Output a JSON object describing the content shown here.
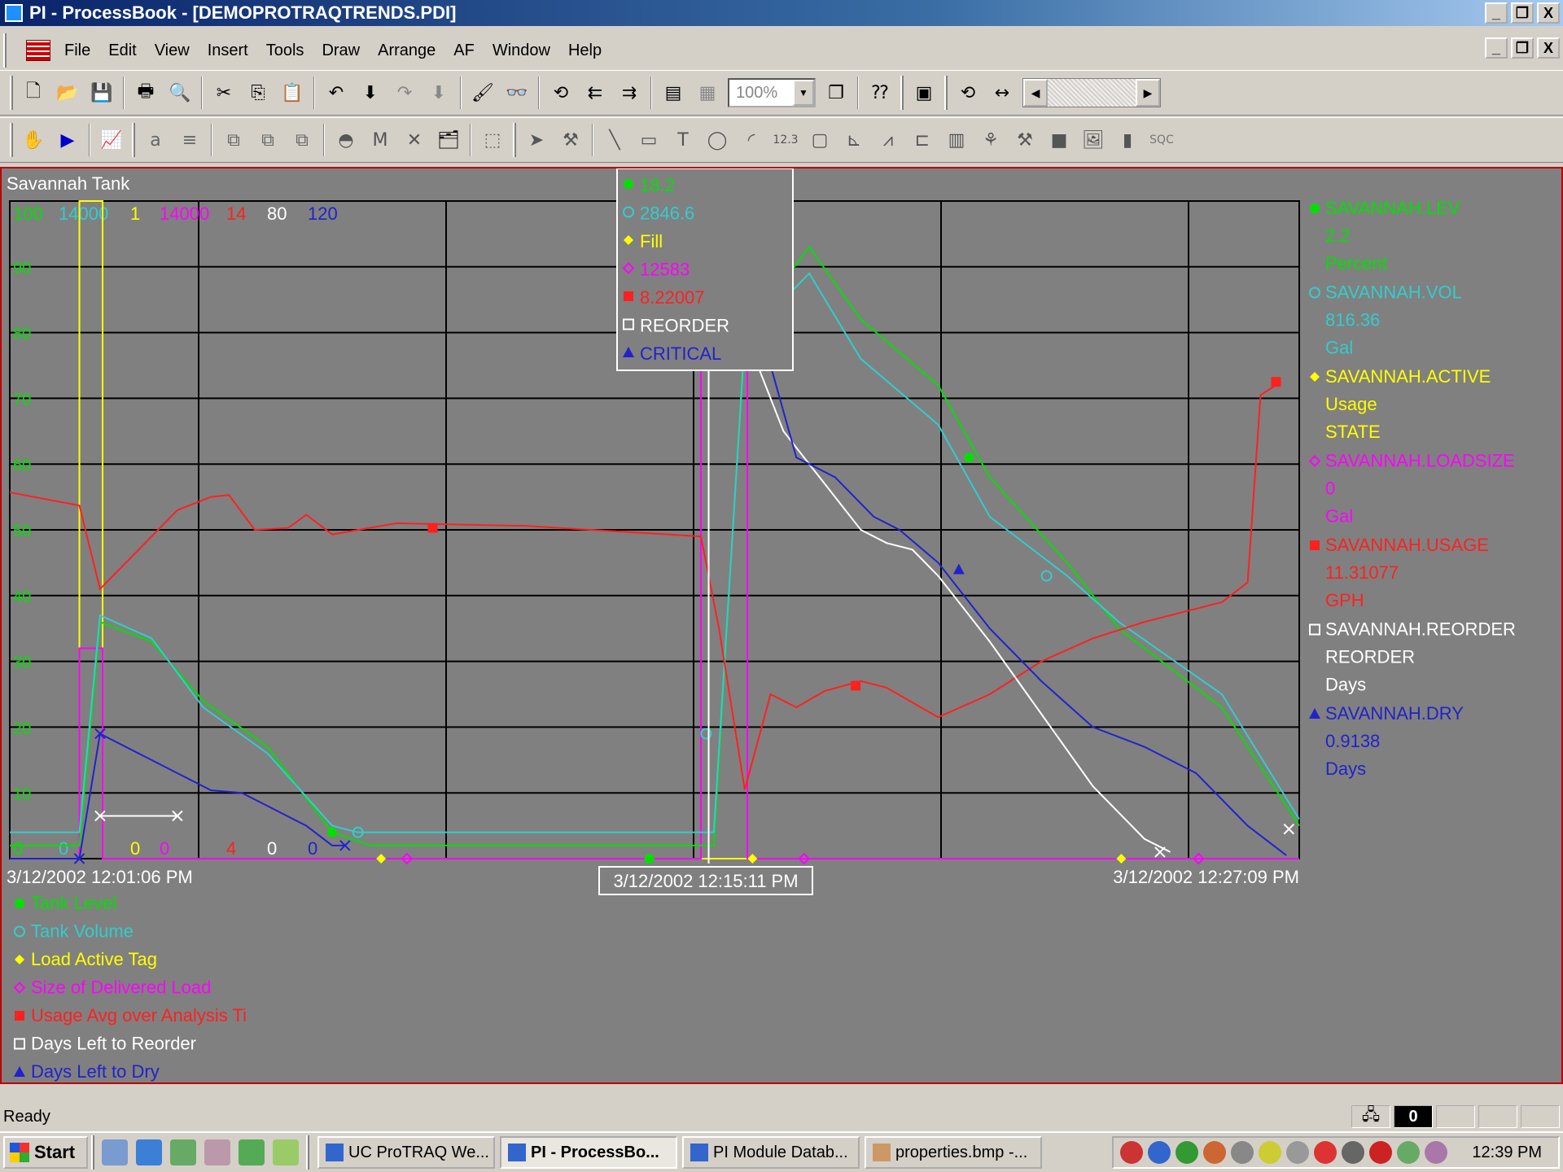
{
  "window": {
    "title": "PI - ProcessBook - [DEMOPROTRAQTRENDS.PDI]",
    "min": "_",
    "restore": "❐",
    "close": "X"
  },
  "menu": [
    "File",
    "Edit",
    "View",
    "Insert",
    "Tools",
    "Draw",
    "Arrange",
    "AF",
    "Window",
    "Help"
  ],
  "toolbar": {
    "zoom": "100%"
  },
  "trend": {
    "title": "Savannah Tank",
    "scale_tops": [
      {
        "t": "100",
        "c": "#00e000"
      },
      {
        "t": "14000",
        "c": "#33cccc"
      },
      {
        "t": "1",
        "c": "#ffff00"
      },
      {
        "t": "14000",
        "c": "#ff00ff"
      },
      {
        "t": "14",
        "c": "#ff2020"
      },
      {
        "t": "80",
        "c": "#ffffff"
      },
      {
        "t": "120",
        "c": "#2222cc"
      }
    ],
    "scale_bottoms": [
      {
        "t": "0",
        "c": "#00e000"
      },
      {
        "t": "0",
        "c": "#33cccc"
      },
      {
        "t": "0",
        "c": "#ffff00"
      },
      {
        "t": "0",
        "c": "#ff00ff"
      },
      {
        "t": "4",
        "c": "#ff2020"
      },
      {
        "t": "0",
        "c": "#ffffff"
      },
      {
        "t": "0",
        "c": "#2222cc"
      }
    ],
    "y_ticks": [
      "90",
      "80",
      "70",
      "60",
      "50",
      "40",
      "30",
      "20",
      "10"
    ],
    "time_start": "3/12/2002 12:01:06 PM",
    "time_cursor": "3/12/2002 12:15:11 PM",
    "time_end": "3/12/2002 12:27:09 PM",
    "cursor_values": [
      {
        "v": "18.2",
        "c": "#00e000",
        "sym": "dot"
      },
      {
        "v": "2846.6",
        "c": "#33cccc",
        "sym": "ring"
      },
      {
        "v": "Fill",
        "c": "#ffff00",
        "sym": "diamond"
      },
      {
        "v": "12583",
        "c": "#ff00ff",
        "sym": "odiamond"
      },
      {
        "v": "8.22007",
        "c": "#ff2020",
        "sym": "square"
      },
      {
        "v": "REORDER",
        "c": "#ffffff",
        "sym": "osquare"
      },
      {
        "v": "CRITICAL",
        "c": "#2222cc",
        "sym": "triangle"
      }
    ],
    "right_legend": [
      {
        "tag": "SAVANNAH.LEV",
        "v": "2.2",
        "u": "Percent",
        "c": "#00e000",
        "sym": "dot"
      },
      {
        "tag": "SAVANNAH.VOL",
        "v": "816.36",
        "u": "Gal",
        "c": "#33cccc",
        "sym": "ring"
      },
      {
        "tag": "SAVANNAH.ACTIVE",
        "v": "Usage",
        "u": "STATE",
        "c": "#ffff00",
        "sym": "diamond"
      },
      {
        "tag": "SAVANNAH.LOADSIZE",
        "v": "0",
        "u": "Gal",
        "c": "#ff00ff",
        "sym": "odiamond"
      },
      {
        "tag": "SAVANNAH.USAGE",
        "v": "11.31077",
        "u": "GPH",
        "c": "#ff2020",
        "sym": "square"
      },
      {
        "tag": "SAVANNAH.REORDER",
        "v": "REORDER",
        "u": "Days",
        "c": "#ffffff",
        "sym": "osquare"
      },
      {
        "tag": "SAVANNAH.DRY",
        "v": "0.9138",
        "u": "Days",
        "c": "#2222cc",
        "sym": "triangle"
      }
    ],
    "bottom_legend": [
      {
        "t": "Tank Level",
        "c": "#00e000",
        "sym": "dot"
      },
      {
        "t": "Tank Volume",
        "c": "#33cccc",
        "sym": "ring"
      },
      {
        "t": "Load Active Tag",
        "c": "#ffff00",
        "sym": "diamond"
      },
      {
        "t": "Size of Delivered Load",
        "c": "#ff00ff",
        "sym": "odiamond"
      },
      {
        "t": "Usage Avg over Analysis Ti",
        "c": "#ff2020",
        "sym": "square"
      },
      {
        "t": "Days Left to Reorder",
        "c": "#ffffff",
        "sym": "osquare"
      },
      {
        "t": "Days Left to Dry",
        "c": "#2222cc",
        "sym": "triangle"
      }
    ]
  },
  "chart_data": {
    "type": "line",
    "title": "Savannah Tank",
    "x_start": "3/12/2002 12:01:06 PM",
    "x_end": "3/12/2002 12:27:09 PM",
    "ylim": [
      0,
      100
    ],
    "grid": true,
    "series": [
      {
        "name": "Tank Level",
        "color": "#00e000",
        "x": [
          0,
          2.7,
          3.5,
          5.5,
          7.5,
          10,
          12.5,
          14,
          27,
          27.3,
          28.5,
          31,
          33,
          36,
          38,
          41,
          43,
          47,
          50
        ],
        "y": [
          2,
          2,
          36,
          33,
          24,
          17,
          4,
          2,
          2,
          2,
          80,
          93,
          82,
          72,
          58,
          45,
          35,
          23,
          5
        ]
      },
      {
        "name": "Tank Volume",
        "color": "#33cccc",
        "x": [
          0,
          2.7,
          3.5,
          5.5,
          7.5,
          10,
          12.5,
          13.5,
          27,
          27.3,
          28.5,
          31,
          33,
          36,
          38,
          41,
          43,
          47,
          50
        ],
        "y": [
          4,
          4,
          37,
          33.5,
          23,
          16,
          5,
          4,
          4,
          4,
          79,
          89,
          76,
          66,
          52,
          43,
          36,
          25,
          6
        ]
      },
      {
        "name": "Usage Avg over Analysis Ti",
        "color": "#ff2020",
        "x": [
          0,
          2.7,
          3.5,
          5,
          6.5,
          7.8,
          8.5,
          9.5,
          10.8,
          11.5,
          12.5,
          15,
          20,
          26.8,
          27.5,
          28.5,
          29.5,
          30.5,
          31.6,
          33,
          34,
          36,
          38,
          40,
          42,
          44,
          46,
          47,
          48,
          48.5,
          49.3
        ],
        "y": [
          55.7,
          53.7,
          41,
          47,
          53,
          55,
          55.3,
          50,
          50.3,
          52.3,
          49.3,
          51,
          50.6,
          49,
          35,
          10.5,
          25,
          23,
          25.5,
          27,
          26,
          21.5,
          25,
          30,
          33.5,
          36,
          38,
          39,
          42,
          70.5,
          72.5
        ]
      },
      {
        "name": "Days Left to Reorder",
        "color": "#ffffff",
        "x": [
          3.5,
          6.5
        ],
        "y": [
          6.5,
          6.5
        ]
      },
      {
        "name": "Days Left to Reorder",
        "color": "#ffffff",
        "x": [
          29,
          30,
          31,
          33,
          34,
          35,
          36,
          38,
          40,
          42,
          44,
          45
        ],
        "y": [
          75,
          65,
          60,
          50,
          48,
          47,
          43,
          33,
          22,
          11,
          3,
          1
        ]
      },
      {
        "name": "Days Left to Dry",
        "color": "#2222cc",
        "x": [
          0,
          2.7,
          3.5,
          5,
          6.5,
          7.8,
          9,
          10,
          11.5,
          12.5,
          13
        ],
        "y": [
          0,
          0,
          19,
          16,
          13,
          10.4,
          10,
          8,
          5,
          2,
          2
        ]
      },
      {
        "name": "Days Left to Dry",
        "color": "#2222cc",
        "x": [
          29.5,
          30.5,
          32,
          33.5,
          34.5,
          36,
          38,
          40,
          42,
          44,
          46,
          48,
          49.5
        ],
        "y": [
          75,
          61,
          58,
          52,
          50,
          45,
          35,
          27,
          20,
          17,
          13,
          5,
          0.5
        ]
      }
    ],
    "steps": [
      {
        "name": "Load Active Tag",
        "color": "#ffff00",
        "x": [
          0,
          2.7,
          2.7,
          3.6,
          3.6,
          50
        ],
        "y": [
          0,
          0,
          100,
          100,
          0,
          0
        ]
      },
      {
        "name": "Size of Delivered Load",
        "color": "#ff00ff",
        "x": [
          0,
          2.7,
          2.7,
          3.6,
          3.6,
          26.8,
          26.8,
          28.6,
          28.6,
          50
        ],
        "y": [
          0,
          0,
          32,
          32,
          0,
          0,
          100,
          100,
          0,
          0
        ]
      }
    ]
  },
  "status": {
    "text": "Ready"
  },
  "taskbar": {
    "start": "Start",
    "tasks": [
      "UC ProTRAQ We...",
      "PI - ProcessBo...",
      "PI Module Datab...",
      "properties.bmp -..."
    ],
    "clock": "12:39 PM"
  }
}
